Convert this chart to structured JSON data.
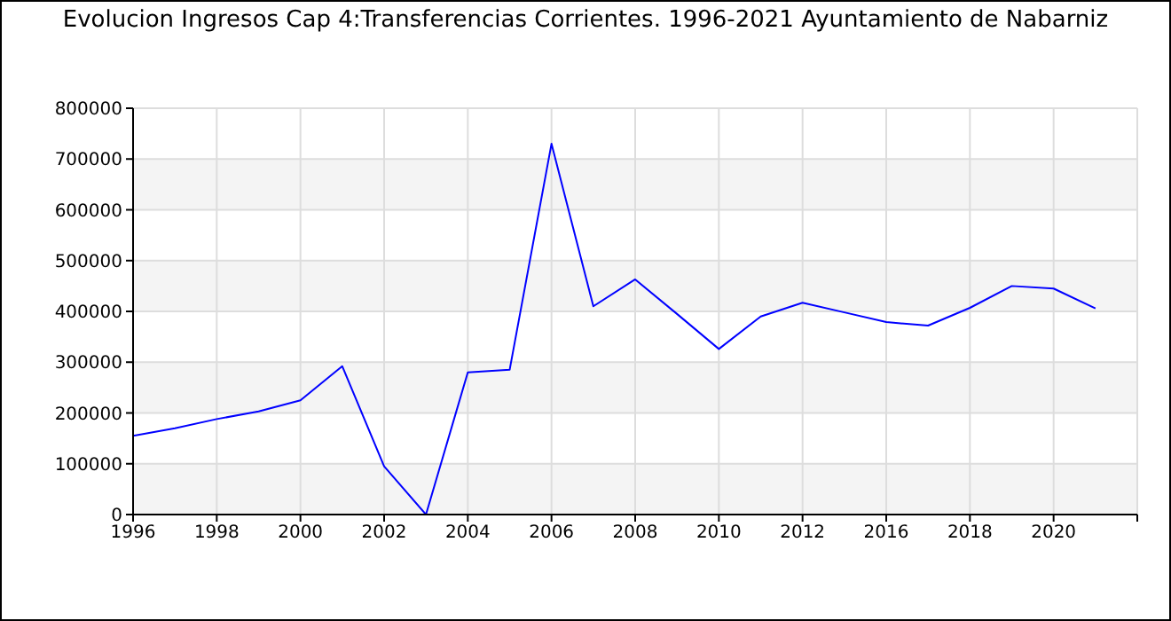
{
  "chart_data": {
    "type": "line",
    "title": "Evolucion Ingresos Cap 4:Transferencias Corrientes. 1996-2021 Ayuntamiento de Nabarniz",
    "categories": [
      "1996",
      null,
      "1998",
      null,
      "2000",
      null,
      "2002",
      null,
      "2004",
      null,
      "2006",
      null,
      "2008",
      null,
      "2010",
      null,
      "2012",
      null,
      "2016",
      null,
      "2018",
      null,
      "2020",
      null,
      null
    ],
    "series": [
      {
        "color": "#0000ff",
        "values": [
          155000,
          170000,
          188000,
          203000,
          225000,
          292000,
          95000,
          0,
          280000,
          285000,
          730000,
          410000,
          463000,
          395000,
          326000,
          390000,
          417000,
          398000,
          379000,
          372000,
          407000,
          450000,
          445000,
          406000,
          null
        ]
      }
    ],
    "ylim": [
      0,
      800000
    ],
    "yticks": [
      0,
      100000,
      200000,
      300000,
      400000,
      500000,
      600000,
      700000,
      800000
    ],
    "grid": true,
    "marker": "none",
    "line_style": "solid"
  }
}
